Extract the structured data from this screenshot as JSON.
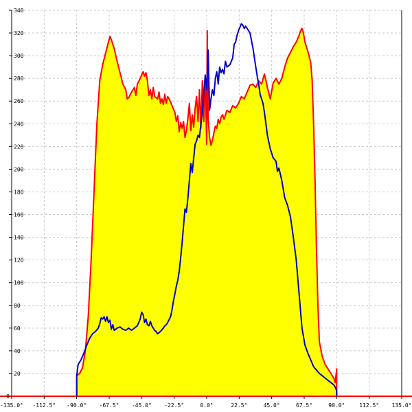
{
  "chart_data": {
    "type": "area",
    "title": "",
    "xlabel": "",
    "ylabel": "",
    "xlim": [
      -135,
      135
    ],
    "ylim": [
      0,
      340
    ],
    "grid": true,
    "x_ticks": [
      {
        "value": -135,
        "label": "-135.0°"
      },
      {
        "value": -112.5,
        "label": "-112.5°"
      },
      {
        "value": -90,
        "label": "-90.0°"
      },
      {
        "value": -67.5,
        "label": "-67.5°"
      },
      {
        "value": -45,
        "label": "-45.0°"
      },
      {
        "value": -22.5,
        "label": "-22.5°"
      },
      {
        "value": 0,
        "label": "0.0°"
      },
      {
        "value": 22.5,
        "label": "22.5°"
      },
      {
        "value": 45,
        "label": "45.0°"
      },
      {
        "value": 67.5,
        "label": "67.5°"
      },
      {
        "value": 90,
        "label": "90.0°"
      },
      {
        "value": 112.5,
        "label": "112.5°"
      },
      {
        "value": 135,
        "label": "135.0°"
      }
    ],
    "y_ticks": [
      {
        "value": 20,
        "label": "20"
      },
      {
        "value": 40,
        "label": "40"
      },
      {
        "value": 60,
        "label": "60"
      },
      {
        "value": 80,
        "label": "80"
      },
      {
        "value": 100,
        "label": "100"
      },
      {
        "value": 120,
        "label": "120"
      },
      {
        "value": 140,
        "label": "140"
      },
      {
        "value": 160,
        "label": "160"
      },
      {
        "value": 180,
        "label": "180"
      },
      {
        "value": 200,
        "label": "200"
      },
      {
        "value": 220,
        "label": "220"
      },
      {
        "value": 240,
        "label": "240"
      },
      {
        "value": 260,
        "label": "260"
      },
      {
        "value": 280,
        "label": "280"
      },
      {
        "value": 300,
        "label": "300"
      },
      {
        "value": 320,
        "label": "320"
      },
      {
        "value": 340,
        "label": "340"
      }
    ],
    "series": [
      {
        "color": "#ff0000",
        "fill": "#ffff00",
        "points": [
          [
            -90,
            0
          ],
          [
            -90,
            18
          ],
          [
            -88,
            20
          ],
          [
            -86,
            25
          ],
          [
            -84,
            40
          ],
          [
            -82,
            70
          ],
          [
            -80,
            120
          ],
          [
            -78,
            180
          ],
          [
            -76,
            240
          ],
          [
            -74,
            278
          ],
          [
            -72,
            292
          ],
          [
            -70,
            302
          ],
          [
            -68,
            312
          ],
          [
            -67,
            317
          ],
          [
            -66,
            314
          ],
          [
            -64,
            306
          ],
          [
            -62,
            295
          ],
          [
            -60,
            285
          ],
          [
            -58,
            275
          ],
          [
            -56,
            270
          ],
          [
            -55,
            262
          ],
          [
            -54,
            263
          ],
          [
            -52,
            268
          ],
          [
            -50,
            272
          ],
          [
            -49,
            265
          ],
          [
            -48,
            275
          ],
          [
            -46,
            280
          ],
          [
            -44,
            286
          ],
          [
            -43,
            282
          ],
          [
            -42,
            285
          ],
          [
            -41,
            278
          ],
          [
            -40,
            265
          ],
          [
            -39,
            270
          ],
          [
            -38,
            262
          ],
          [
            -37,
            272
          ],
          [
            -36,
            264
          ],
          [
            -34,
            262
          ],
          [
            -33,
            268
          ],
          [
            -32,
            258
          ],
          [
            -31,
            262
          ],
          [
            -30,
            257
          ],
          [
            -29,
            266
          ],
          [
            -28,
            258
          ],
          [
            -27,
            264
          ],
          [
            -26,
            262
          ],
          [
            -24,
            256
          ],
          [
            -22,
            250
          ],
          [
            -21,
            242
          ],
          [
            -20,
            247
          ],
          [
            -19,
            233
          ],
          [
            -18,
            241
          ],
          [
            -17,
            236
          ],
          [
            -16,
            242
          ],
          [
            -15,
            228
          ],
          [
            -14,
            234
          ],
          [
            -13,
            245
          ],
          [
            -12,
            258
          ],
          [
            -11,
            234
          ],
          [
            -10,
            248
          ],
          [
            -9,
            237
          ],
          [
            -8,
            254
          ],
          [
            -7,
            264
          ],
          [
            -6,
            242
          ],
          [
            -5,
            270
          ],
          [
            -4,
            236
          ],
          [
            -3,
            278
          ],
          [
            -2,
            242
          ],
          [
            -1,
            283
          ],
          [
            0,
            222
          ],
          [
            0.4,
            322
          ],
          [
            1,
            245
          ],
          [
            2,
            228
          ],
          [
            3,
            221
          ],
          [
            4,
            226
          ],
          [
            5,
            232
          ],
          [
            6,
            238
          ],
          [
            7,
            236
          ],
          [
            8,
            244
          ],
          [
            9,
            240
          ],
          [
            10,
            246
          ],
          [
            11,
            248
          ],
          [
            12,
            244
          ],
          [
            14,
            252
          ],
          [
            16,
            250
          ],
          [
            18,
            256
          ],
          [
            20,
            254
          ],
          [
            22,
            258
          ],
          [
            24,
            264
          ],
          [
            26,
            262
          ],
          [
            28,
            268
          ],
          [
            30,
            274
          ],
          [
            32,
            275
          ],
          [
            34,
            272
          ],
          [
            36,
            278
          ],
          [
            38,
            275
          ],
          [
            40,
            284
          ],
          [
            41,
            278
          ],
          [
            42,
            272
          ],
          [
            44,
            262
          ],
          [
            46,
            276
          ],
          [
            48,
            280
          ],
          [
            50,
            275
          ],
          [
            52,
            280
          ],
          [
            54,
            290
          ],
          [
            56,
            298
          ],
          [
            58,
            303
          ],
          [
            60,
            308
          ],
          [
            62,
            312
          ],
          [
            64,
            318
          ],
          [
            65,
            322
          ],
          [
            66,
            324
          ],
          [
            67,
            320
          ],
          [
            68,
            312
          ],
          [
            70,
            304
          ],
          [
            72,
            294
          ],
          [
            73,
            278
          ],
          [
            74,
            240
          ],
          [
            75,
            190
          ],
          [
            76,
            130
          ],
          [
            77,
            80
          ],
          [
            78,
            48
          ],
          [
            80,
            35
          ],
          [
            82,
            28
          ],
          [
            84,
            24
          ],
          [
            86,
            20
          ],
          [
            88,
            16
          ],
          [
            89,
            12
          ],
          [
            90,
            24
          ],
          [
            90,
            0
          ]
        ]
      },
      {
        "color": "#0000c8",
        "fill": "none",
        "points": [
          [
            -90,
            0
          ],
          [
            -90,
            18
          ],
          [
            -89,
            28
          ],
          [
            -87,
            32
          ],
          [
            -85,
            38
          ],
          [
            -83,
            45
          ],
          [
            -81,
            51
          ],
          [
            -79,
            55
          ],
          [
            -77,
            57
          ],
          [
            -75,
            60
          ],
          [
            -74,
            64
          ],
          [
            -73,
            69
          ],
          [
            -72,
            68
          ],
          [
            -71,
            70
          ],
          [
            -70,
            66
          ],
          [
            -69,
            70
          ],
          [
            -68,
            65
          ],
          [
            -67,
            67
          ],
          [
            -66,
            59
          ],
          [
            -65,
            63
          ],
          [
            -64,
            58
          ],
          [
            -62,
            60
          ],
          [
            -60,
            61
          ],
          [
            -58,
            59
          ],
          [
            -56,
            58
          ],
          [
            -54,
            60
          ],
          [
            -52,
            58
          ],
          [
            -50,
            60
          ],
          [
            -48,
            62
          ],
          [
            -46,
            68
          ],
          [
            -45,
            74
          ],
          [
            -44,
            72
          ],
          [
            -43,
            65
          ],
          [
            -42,
            68
          ],
          [
            -41,
            63
          ],
          [
            -40,
            62
          ],
          [
            -39,
            66
          ],
          [
            -38,
            62
          ],
          [
            -37,
            60
          ],
          [
            -36,
            58
          ],
          [
            -35,
            57
          ],
          [
            -34,
            55
          ],
          [
            -33,
            56
          ],
          [
            -32,
            57
          ],
          [
            -30,
            60
          ],
          [
            -29,
            62
          ],
          [
            -28,
            63
          ],
          [
            -27,
            65
          ],
          [
            -25,
            70
          ],
          [
            -24,
            76
          ],
          [
            -23,
            84
          ],
          [
            -22,
            90
          ],
          [
            -21,
            97
          ],
          [
            -20,
            102
          ],
          [
            -19,
            110
          ],
          [
            -18,
            122
          ],
          [
            -17,
            135
          ],
          [
            -16,
            150
          ],
          [
            -15,
            165
          ],
          [
            -14,
            162
          ],
          [
            -13,
            175
          ],
          [
            -12,
            190
          ],
          [
            -11,
            205
          ],
          [
            -10,
            197
          ],
          [
            -9,
            210
          ],
          [
            -8,
            222
          ],
          [
            -7,
            225
          ],
          [
            -6,
            230
          ],
          [
            -5,
            228
          ],
          [
            -4,
            240
          ],
          [
            -3,
            250
          ],
          [
            -2,
            268
          ],
          [
            -1,
            283
          ],
          [
            0,
            270
          ],
          [
            1,
            305
          ],
          [
            2,
            252
          ],
          [
            3,
            262
          ],
          [
            4,
            270
          ],
          [
            5,
            265
          ],
          [
            6,
            280
          ],
          [
            7,
            286
          ],
          [
            8,
            275
          ],
          [
            9,
            290
          ],
          [
            10,
            285
          ],
          [
            11,
            288
          ],
          [
            12,
            284
          ],
          [
            13,
            295
          ],
          [
            14,
            290
          ],
          [
            16,
            292
          ],
          [
            18,
            298
          ],
          [
            19,
            310
          ],
          [
            20,
            312
          ],
          [
            21,
            318
          ],
          [
            22,
            322
          ],
          [
            23,
            325
          ],
          [
            24,
            328
          ],
          [
            25,
            327
          ],
          [
            26,
            324
          ],
          [
            27,
            326
          ],
          [
            28,
            324
          ],
          [
            30,
            320
          ],
          [
            32,
            307
          ],
          [
            34,
            290
          ],
          [
            35,
            282
          ],
          [
            36,
            275
          ],
          [
            37,
            266
          ],
          [
            38,
            262
          ],
          [
            39,
            258
          ],
          [
            40,
            250
          ],
          [
            42,
            230
          ],
          [
            44,
            218
          ],
          [
            46,
            210
          ],
          [
            48,
            207
          ],
          [
            49,
            198
          ],
          [
            50,
            201
          ],
          [
            52,
            190
          ],
          [
            54,
            175
          ],
          [
            56,
            168
          ],
          [
            58,
            158
          ],
          [
            60,
            140
          ],
          [
            62,
            120
          ],
          [
            64,
            90
          ],
          [
            66,
            60
          ],
          [
            68,
            45
          ],
          [
            70,
            38
          ],
          [
            72,
            32
          ],
          [
            74,
            26
          ],
          [
            76,
            23
          ],
          [
            78,
            20
          ],
          [
            80,
            18
          ],
          [
            82,
            16
          ],
          [
            84,
            14
          ],
          [
            86,
            12
          ],
          [
            88,
            10
          ],
          [
            89,
            8
          ],
          [
            90,
            5
          ],
          [
            90,
            0
          ]
        ]
      }
    ]
  }
}
